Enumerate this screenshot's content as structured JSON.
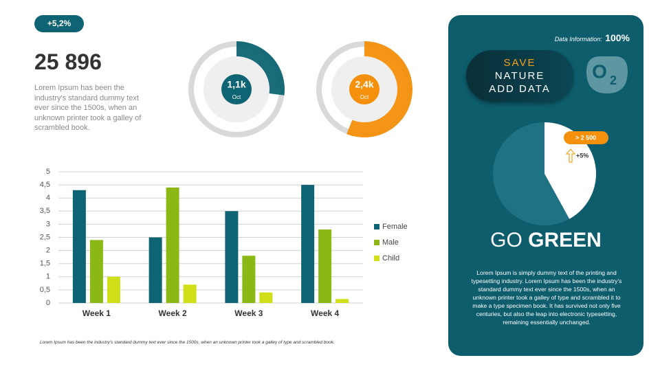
{
  "badge": "+5,2%",
  "headline": "25 896",
  "intro": "Lorem Ipsum has been the industry's standard dummy text ever since the 1500s, when an unknown printer took a galley of scrambled book.",
  "footnote": "Lorem Ipsum has been the industry's standard dummy text ever since the 1500s, when an unknown printer took a galley of type and scrambled book.",
  "panel": {
    "data_info_label": "Data Information:",
    "data_info_value": "100%",
    "button_lines": [
      "SAVE",
      "NATURE",
      "ADD DATA"
    ],
    "icon": "O",
    "icon_sub": "2",
    "pie_badge": "> 2 500",
    "pie_change": "+5%",
    "heading_light": "GO",
    "heading_bold": "GREEN",
    "body": "Lorem Ipsum is simply dummy text of the printing and typesetting industry. Lorem Ipsum has been the industry's standard dummy text ever since the 1500s, when an unknown printer took a galley of type and scrambled it to make a type specimen book. It has survived not only five centuries, but also the leap into electronic typesetting, remaining essentially unchanged."
  },
  "chart_data": [
    {
      "type": "gauge",
      "label": "1,1k",
      "sublabel": "Oct",
      "value": 27,
      "ylim": [
        0,
        100
      ],
      "color": "#0e6472"
    },
    {
      "type": "gauge",
      "label": "2,4k",
      "sublabel": "Oct",
      "value": 56,
      "ylim": [
        0,
        100
      ],
      "color": "#f4900c"
    },
    {
      "type": "bar",
      "categories": [
        "Week 1",
        "Week 2",
        "Week 3",
        "Week 4"
      ],
      "series": [
        {
          "name": "Female",
          "color": "#0e6472",
          "values": [
            4.3,
            2.5,
            3.5,
            4.5
          ]
        },
        {
          "name": "Male",
          "color": "#8cb815",
          "values": [
            2.4,
            4.4,
            1.8,
            2.8
          ]
        },
        {
          "name": "Child",
          "color": "#d0df18",
          "values": [
            1.0,
            0.7,
            0.4,
            0.15
          ]
        }
      ],
      "ylim": [
        0,
        5
      ],
      "yticks": [
        0,
        {
          "value": 0.5,
          "label": "0,5"
        },
        1,
        {
          "value": 1.5,
          "label": "1,5"
        },
        2,
        {
          "value": 2.5,
          "label": "2,5"
        },
        3,
        {
          "value": 3.5,
          "label": "3,5"
        },
        4,
        {
          "value": 4.5,
          "label": "4,5"
        },
        5
      ],
      "grid": true
    },
    {
      "type": "pie",
      "values": [
        42,
        58
      ],
      "colors": [
        "#ffffff",
        "#1f7282"
      ]
    }
  ]
}
